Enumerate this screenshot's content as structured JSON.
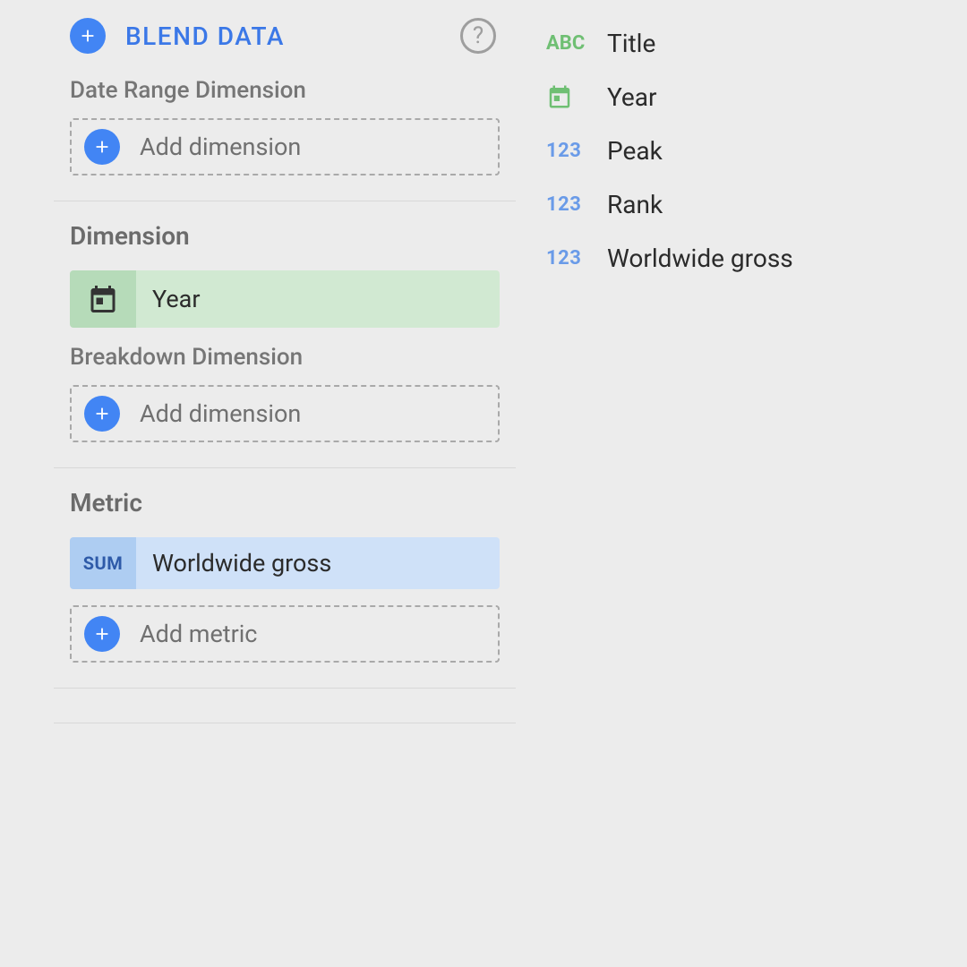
{
  "colors": {
    "accent_blue": "#4285f4",
    "link_blue": "#3b78e7",
    "chip_green_icon_bg": "#b6dbb9",
    "chip_green_text_bg": "#d1e9d2",
    "chip_blue_icon_bg": "#aecdf2",
    "chip_blue_text_bg": "#cfe1f8",
    "badge_green": "#6fbf73",
    "badge_blue": "#6a9be8",
    "text_muted": "#767676",
    "panel_bg": "#ececec",
    "border_gray": "#d8d8d8"
  },
  "left": {
    "blend_label": "BLEND DATA",
    "date_range_label": "Date Range Dimension",
    "add_dimension_label": "Add dimension",
    "dimension_label": "Dimension",
    "dimension_chip": "Year",
    "breakdown_label": "Breakdown Dimension",
    "metric_label": "Metric",
    "metric_agg_badge": "SUM",
    "metric_chip": "Worldwide gross",
    "add_metric_label": "Add metric"
  },
  "right": {
    "fields": [
      {
        "type": "abc",
        "label": "Title"
      },
      {
        "type": "date",
        "label": "Year"
      },
      {
        "type": "number",
        "label": "Peak"
      },
      {
        "type": "number",
        "label": "Rank"
      },
      {
        "type": "number",
        "label": "Worldwide gross"
      }
    ],
    "abc_badge_text": "ABC",
    "num_badge_text": "123"
  }
}
